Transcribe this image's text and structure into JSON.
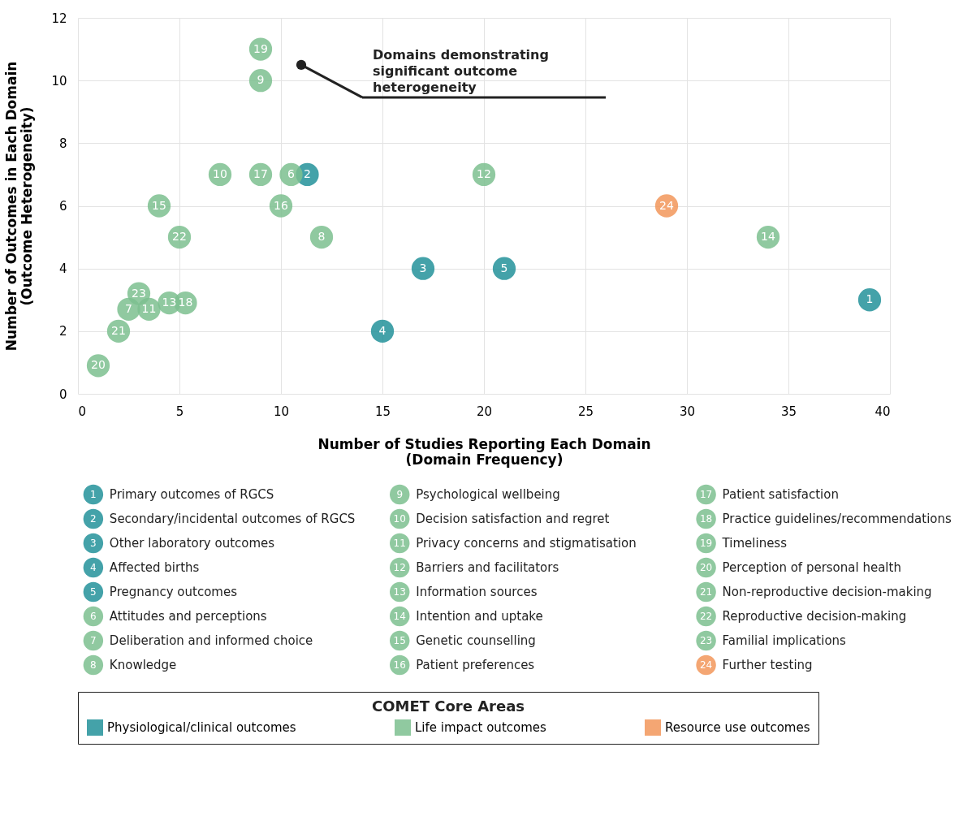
{
  "chart_data": {
    "type": "scatter",
    "xlabel": "Number of Studies Reporting Each Domain\n(Domain Frequency)",
    "ylabel": "Number of Outcomes in Each Domain\n(Outcome Heterogeneity)",
    "legend_title": "COMET Core Areas",
    "xlim": [
      0,
      40
    ],
    "xticks": [
      0,
      5,
      10,
      15,
      20,
      25,
      30,
      35,
      40
    ],
    "ylim": [
      0,
      12
    ],
    "yticks": [
      0,
      2,
      4,
      6,
      8,
      10,
      12
    ],
    "grid": true,
    "legend": "bottom",
    "marker": "circle",
    "series": [
      {
        "name": "Physiological/clinical outcomes",
        "color": "#23929a",
        "x": [
          39,
          11.3,
          17,
          15,
          21
        ],
        "values": [
          3,
          7,
          4,
          2,
          4
        ]
      },
      {
        "name": "Life impact outcomes",
        "color": "#7cc08f",
        "x": [
          10.5,
          2.5,
          12,
          9,
          7,
          3.5,
          20,
          4.5,
          34,
          4,
          10,
          9,
          5.3,
          9,
          1,
          2,
          5,
          3
        ],
        "values": [
          7,
          2.7,
          5,
          10,
          7,
          2.7,
          7,
          2.9,
          5,
          6,
          6,
          7,
          2.9,
          11,
          0.9,
          2,
          5,
          3.2
        ]
      },
      {
        "name": "Resource use outcomes",
        "color": "#f2975a",
        "x": [
          29
        ],
        "values": [
          6
        ]
      }
    ],
    "annotations": [
      {
        "text": "Domains demonstrating significant outcome heterogeneity",
        "x": 11,
        "y": 10.5
      },
      {
        "text": "1",
        "x": 39,
        "y": 3
      },
      {
        "text": "2",
        "x": 11.3,
        "y": 7
      },
      {
        "text": "3",
        "x": 17,
        "y": 4
      },
      {
        "text": "4",
        "x": 15,
        "y": 2
      },
      {
        "text": "5",
        "x": 21,
        "y": 4
      },
      {
        "text": "6",
        "x": 10.5,
        "y": 7
      },
      {
        "text": "7",
        "x": 2.5,
        "y": 2.7
      },
      {
        "text": "8",
        "x": 12,
        "y": 5
      },
      {
        "text": "9",
        "x": 9,
        "y": 10
      },
      {
        "text": "10",
        "x": 7,
        "y": 7
      },
      {
        "text": "11",
        "x": 3.5,
        "y": 2.7
      },
      {
        "text": "12",
        "x": 20,
        "y": 7
      },
      {
        "text": "13",
        "x": 4.5,
        "y": 2.9
      },
      {
        "text": "14",
        "x": 34,
        "y": 5
      },
      {
        "text": "15",
        "x": 4,
        "y": 6
      },
      {
        "text": "16",
        "x": 10,
        "y": 6
      },
      {
        "text": "17",
        "x": 9,
        "y": 7
      },
      {
        "text": "18",
        "x": 5.3,
        "y": 2.9
      },
      {
        "text": "19",
        "x": 9,
        "y": 11
      },
      {
        "text": "20",
        "x": 1,
        "y": 0.9
      },
      {
        "text": "21",
        "x": 2,
        "y": 2
      },
      {
        "text": "22",
        "x": 5,
        "y": 5
      },
      {
        "text": "23",
        "x": 3,
        "y": 3.2
      },
      {
        "text": "24",
        "x": 29,
        "y": 6
      },
      "Primary outcomes of RGCS",
      "Secondary/incidental outcomes of RGCS",
      "Other laboratory outcomes",
      "Affected births",
      "Pregnancy outcomes",
      "Attitudes and perceptions",
      "Deliberation and informed choice",
      "Knowledge",
      "Psychological wellbeing",
      "Decision satisfaction and regret",
      "Privacy concerns and stigmatisation",
      "Barriers and facilitators",
      "Information sources",
      "Intention and uptake",
      "Genetic counselling",
      "Patient preferences",
      "Patient satisfaction",
      "Practice guidelines/recommendations",
      "Timeliness",
      "Perception of personal health",
      "Non-reproductive decision-making",
      "Reproductive decision-making",
      "Familial implications",
      "Further testing"
    ]
  }
}
